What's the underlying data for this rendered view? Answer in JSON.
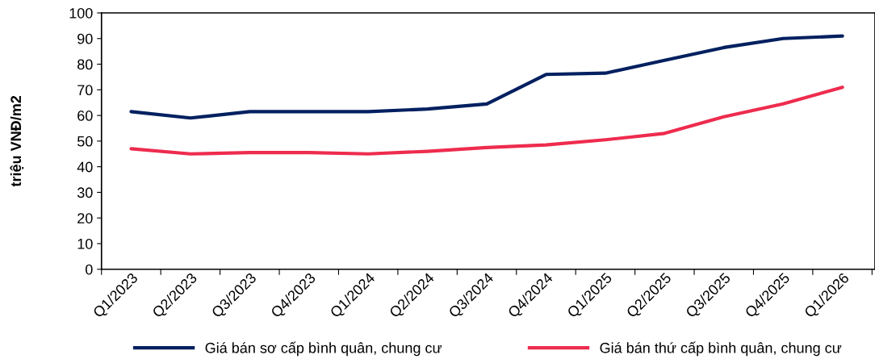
{
  "chart_data": {
    "type": "line",
    "ylabel": "triệu VNĐ/m2",
    "categories": [
      "Q1/2023",
      "Q2/2023",
      "Q3/2023",
      "Q4/2023",
      "Q1/2024",
      "Q2/2024",
      "Q3/2024",
      "Q4/2024",
      "Q1/2025",
      "Q2/2025",
      "Q3/2025",
      "Q4/2025",
      "Q1/2026"
    ],
    "series": [
      {
        "name": "Giá bán sơ cấp bình quân, chung cư",
        "color": "#002060",
        "values": [
          61.5,
          59,
          61.5,
          61.5,
          61.5,
          62.5,
          64.5,
          76,
          76.5,
          81.5,
          86.5,
          90,
          91
        ]
      },
      {
        "name": "Giá bán thứ cấp bình quân, chung cư",
        "color": "#ee2c4e",
        "values": [
          47,
          45,
          45.5,
          45.5,
          45,
          46,
          47.5,
          48.5,
          50.5,
          53,
          59.5,
          64.5,
          71
        ]
      }
    ],
    "ylim": [
      0,
      100
    ],
    "yticks": [
      0,
      10,
      20,
      30,
      40,
      50,
      60,
      70,
      80,
      90,
      100
    ],
    "grid": false,
    "legend": "bottom",
    "marker": "none",
    "line_style": "solid"
  }
}
